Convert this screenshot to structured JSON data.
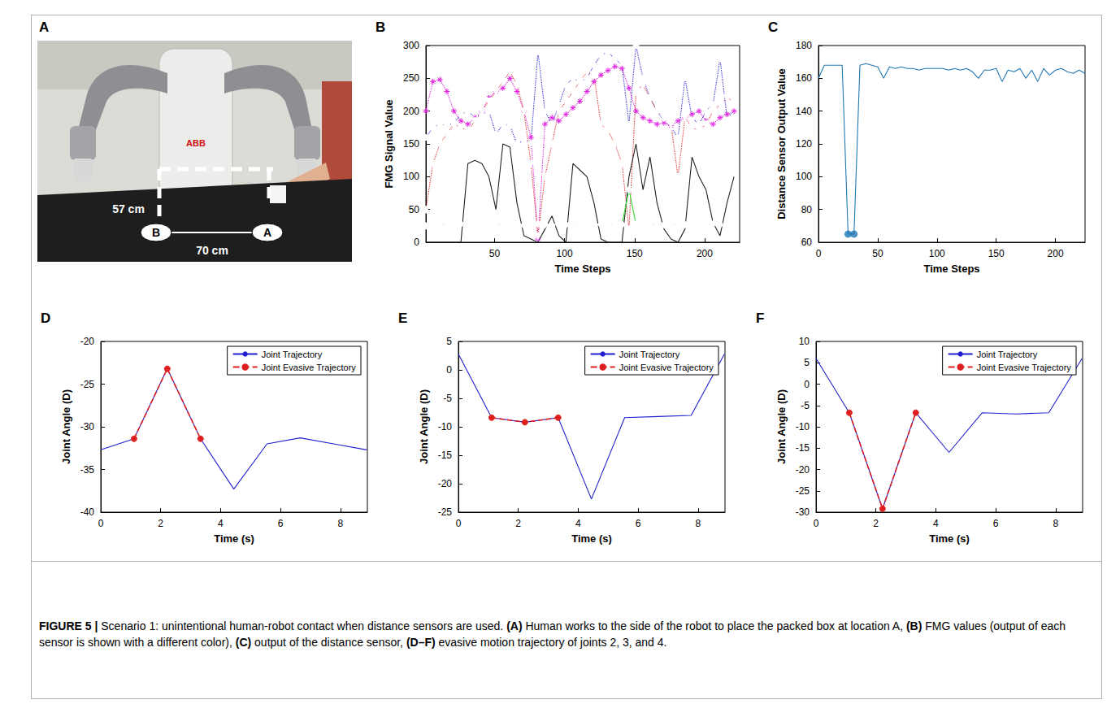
{
  "photo": {
    "panel": "A",
    "labels": {
      "brand": "ABB",
      "height": "57 cm",
      "width": "70 cm",
      "point_a": "A",
      "point_b": "B"
    }
  },
  "chart_data": [
    {
      "panel": "B",
      "type": "line",
      "xlabel": "Time Steps",
      "ylabel": "FMG Signal Value",
      "grid": false,
      "x": [
        1,
        6,
        11,
        16,
        21,
        26,
        31,
        36,
        41,
        46,
        51,
        56,
        61,
        66,
        71,
        76,
        81,
        86,
        91,
        96,
        101,
        106,
        111,
        116,
        121,
        126,
        131,
        136,
        141,
        146,
        151,
        156,
        161,
        166,
        171,
        176,
        181,
        186,
        191,
        196,
        201,
        206,
        211,
        216,
        221
      ],
      "xlim": [
        1,
        225
      ],
      "xticks": [
        50,
        100,
        150,
        200
      ],
      "ylim": [
        0,
        300
      ],
      "yticks": [
        0,
        50,
        100,
        150,
        200,
        250,
        300
      ],
      "series": [
        {
          "color": "#2b2bd6",
          "marker": "circle",
          "line_style": "dotted",
          "values": [
            160,
            175,
            180,
            178,
            182,
            195,
            200,
            190,
            195,
            200,
            165,
            180,
            178,
            150,
            155,
            152,
            290,
            200,
            180,
            210,
            240,
            250,
            245,
            250,
            270,
            285,
            290,
            280,
            270,
            180,
            300,
            250,
            220,
            200,
            185,
            175,
            160,
            250,
            190,
            180,
            200,
            210,
            280,
            190,
            200
          ]
        },
        {
          "color": "#e020e0",
          "marker": "asterisk",
          "line_style": "dotted",
          "values": [
            200,
            245,
            248,
            230,
            200,
            185,
            180,
            190,
            200,
            220,
            230,
            235,
            250,
            230,
            200,
            160,
            5,
            180,
            190,
            185,
            195,
            205,
            215,
            230,
            245,
            255,
            262,
            268,
            265,
            235,
            200,
            190,
            185,
            180,
            182,
            178,
            185,
            190,
            195,
            200,
            185,
            180,
            190,
            195,
            200
          ]
        },
        {
          "color": "#e03030",
          "marker": "triangle_down",
          "line_style": "dotted",
          "values": [
            50,
            120,
            150,
            165,
            180,
            175,
            170,
            185,
            200,
            215,
            230,
            245,
            260,
            240,
            200,
            120,
            10,
            100,
            150,
            200,
            215,
            230,
            245,
            260,
            255,
            180,
            170,
            150,
            120,
            20,
            230,
            240,
            220,
            200,
            190,
            180,
            100,
            190,
            175,
            170,
            180,
            200,
            210,
            220,
            215
          ]
        },
        {
          "color": "#222222",
          "marker": "none",
          "line_style": "solid",
          "values": [
            0,
            0,
            0,
            0,
            0,
            0,
            120,
            125,
            120,
            100,
            50,
            150,
            145,
            60,
            10,
            5,
            0,
            20,
            40,
            10,
            0,
            120,
            110,
            100,
            60,
            5,
            0,
            0,
            0,
            100,
            150,
            80,
            130,
            60,
            20,
            5,
            0,
            20,
            130,
            100,
            80,
            30,
            10,
            60,
            100
          ]
        },
        {
          "color": "#33dd33",
          "marker": "diamond",
          "line_style": "solid",
          "values": [
            25,
            27,
            28,
            26,
            27,
            28,
            26,
            27,
            28,
            27,
            26,
            28,
            27,
            28,
            26,
            27,
            28,
            27,
            26,
            28,
            27,
            28,
            26,
            27,
            28,
            27,
            26,
            28,
            27,
            80,
            28,
            27,
            26,
            28,
            27,
            28,
            26,
            27,
            28,
            27,
            26,
            28,
            27,
            28,
            27
          ]
        }
      ]
    },
    {
      "panel": "C",
      "type": "line",
      "xlabel": "Time Steps",
      "ylabel": "Distance Sensor Output Value",
      "grid": false,
      "x": [
        0,
        5,
        10,
        15,
        20,
        25,
        30,
        35,
        40,
        45,
        50,
        55,
        60,
        65,
        70,
        75,
        80,
        85,
        90,
        95,
        100,
        105,
        110,
        115,
        120,
        125,
        130,
        135,
        140,
        145,
        150,
        155,
        160,
        165,
        170,
        175,
        180,
        185,
        190,
        195,
        200,
        205,
        210,
        215,
        220,
        225
      ],
      "xlim": [
        0,
        225
      ],
      "xticks": [
        0,
        50,
        100,
        150,
        200
      ],
      "ylim": [
        60,
        180
      ],
      "yticks": [
        60,
        80,
        100,
        120,
        140,
        160,
        180
      ],
      "series": [
        {
          "color": "#1f77b4",
          "marker": "none",
          "line_style": "solid",
          "values": [
            160,
            168,
            168,
            168,
            168,
            65,
            65,
            168,
            169,
            168,
            167,
            160,
            167,
            166,
            167,
            166,
            166,
            165,
            166,
            166,
            166,
            166,
            165,
            166,
            165,
            166,
            164,
            160,
            165,
            165,
            166,
            158,
            165,
            164,
            166,
            160,
            165,
            158,
            166,
            162,
            165,
            166,
            164,
            163,
            165,
            163
          ]
        },
        {
          "type": "scatter",
          "color": "#1f77b4",
          "marker": "dot",
          "x": [
            25,
            30
          ],
          "values": [
            65,
            65
          ]
        }
      ]
    },
    {
      "panel": "D",
      "type": "line",
      "xlabel": "Time (s)",
      "ylabel": "Joint Angle (D)",
      "grid": false,
      "legend": "upper right",
      "x": [
        0,
        1.11,
        2.22,
        3.33,
        4.44,
        5.55,
        6.66,
        7.77,
        8.88
      ],
      "xlim": [
        0,
        8.9
      ],
      "xticks": [
        0,
        2,
        4,
        6,
        8
      ],
      "ylim": [
        -40,
        -20
      ],
      "yticks": [
        -40,
        -35,
        -30,
        -25,
        -20
      ],
      "series": [
        {
          "name": "Joint Trajectory",
          "color": "#1f1fd0",
          "marker": "none",
          "line_style": "solid",
          "values": [
            -32.7,
            -31.4,
            -23.2,
            -31.4,
            -37.3,
            -32.0,
            -31.3,
            -32.0,
            -32.7
          ]
        },
        {
          "name": "Joint Evasive Trajectory",
          "color": "#e02020",
          "marker": "dot",
          "line_style": "dashed",
          "x": [
            1.11,
            2.22,
            3.33
          ],
          "values": [
            -31.4,
            -23.2,
            -31.4
          ]
        }
      ]
    },
    {
      "panel": "E",
      "type": "line",
      "xlabel": "Time (s)",
      "ylabel": "Joint Angle (D)",
      "grid": false,
      "legend": "upper right",
      "x": [
        0,
        1.11,
        2.22,
        3.33,
        4.44,
        5.55,
        6.66,
        7.77,
        8.88
      ],
      "xlim": [
        0,
        8.9
      ],
      "xticks": [
        0,
        2,
        4,
        6,
        8
      ],
      "ylim": [
        -25,
        5
      ],
      "yticks": [
        -25,
        -20,
        -15,
        -10,
        -5,
        0,
        5
      ],
      "series": [
        {
          "name": "Joint Trajectory",
          "color": "#1f1fd0",
          "marker": "none",
          "line_style": "solid",
          "values": [
            2.8,
            -8.4,
            -9.2,
            -8.4,
            -22.7,
            -8.4,
            -8.2,
            -8.0,
            2.8
          ]
        },
        {
          "name": "Joint Evasive Trajectory",
          "color": "#e02020",
          "marker": "dot",
          "line_style": "dashed",
          "x": [
            1.11,
            2.22,
            3.33
          ],
          "values": [
            -8.4,
            -9.2,
            -8.4
          ]
        }
      ]
    },
    {
      "panel": "F",
      "type": "line",
      "xlabel": "Time (s)",
      "ylabel": "Joint Angle (D)",
      "grid": false,
      "legend": "upper right",
      "x": [
        0,
        1.11,
        2.22,
        3.33,
        4.44,
        5.55,
        6.66,
        7.77,
        8.88
      ],
      "xlim": [
        0,
        8.9
      ],
      "xticks": [
        0,
        2,
        4,
        6,
        8
      ],
      "ylim": [
        -30,
        10
      ],
      "yticks": [
        -30,
        -25,
        -20,
        -15,
        -10,
        -5,
        0,
        5,
        10
      ],
      "series": [
        {
          "name": "Joint Trajectory",
          "color": "#1f1fd0",
          "marker": "none",
          "line_style": "solid",
          "values": [
            6.0,
            -6.7,
            -29.2,
            -6.7,
            -16.0,
            -6.7,
            -7.0,
            -6.7,
            6.0
          ]
        },
        {
          "name": "Joint Evasive Trajectory",
          "color": "#e02020",
          "marker": "dot",
          "line_style": "dashed",
          "x": [
            1.11,
            2.22,
            3.33
          ],
          "values": [
            -6.7,
            -29.2,
            -6.7
          ]
        }
      ]
    }
  ],
  "caption": [
    {
      "text": "FIGURE 5 |",
      "bold": true
    },
    {
      "text": " Scenario 1: unintentional human-robot contact when distance sensors are used. ",
      "bold": false
    },
    {
      "text": "(A)",
      "bold": true
    },
    {
      "text": " Human works to the side of the robot to place the packed box at location A, ",
      "bold": false
    },
    {
      "text": "(B)",
      "bold": true
    },
    {
      "text": " FMG values (output of each sensor is shown with a different color), ",
      "bold": false
    },
    {
      "text": "(C)",
      "bold": true
    },
    {
      "text": " output of the distance sensor, ",
      "bold": false
    },
    {
      "text": "(D–F)",
      "bold": true
    },
    {
      "text": " evasive motion trajectory of joints 2, 3, and 4.",
      "bold": false
    }
  ]
}
